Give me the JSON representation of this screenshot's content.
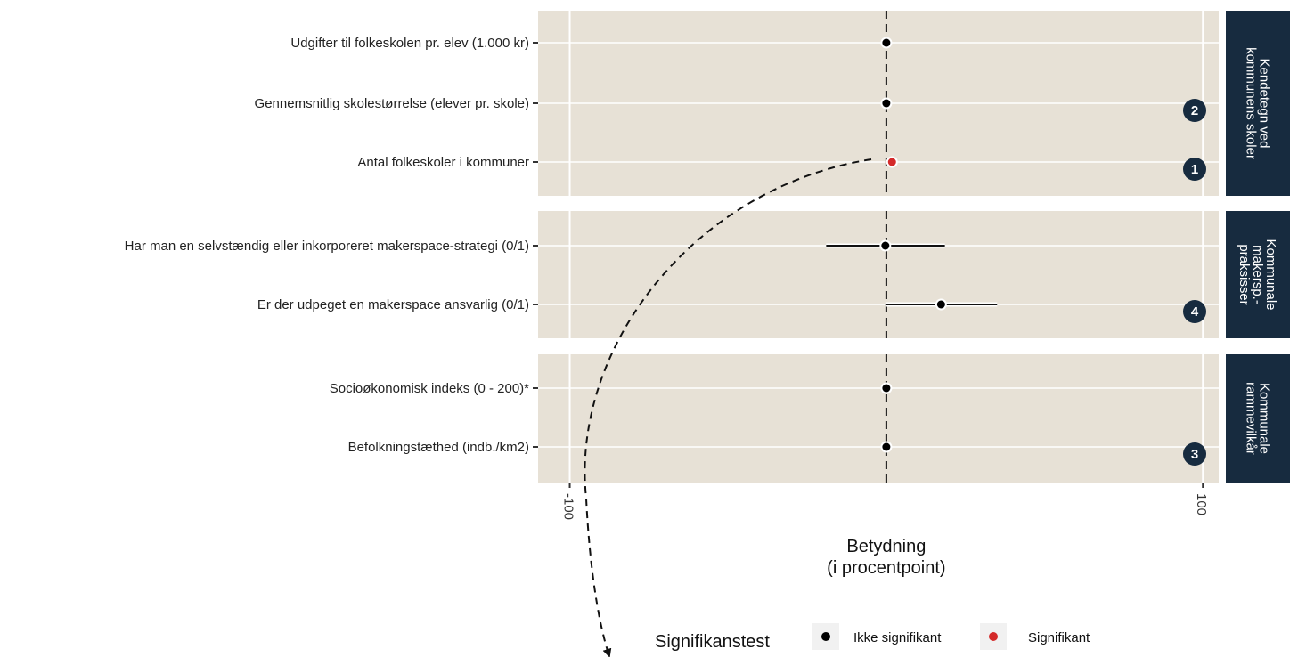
{
  "chart_data": {
    "type": "forest",
    "xlabel": "Betydning\n(i procentpoint)",
    "xlim": [
      -110,
      105
    ],
    "xticks": [
      -100,
      100
    ],
    "xtick_labels": [
      "-100",
      "100"
    ],
    "reference_line": 0,
    "grid": true,
    "panels": [
      {
        "strip": "Kendetegn ved\nkommunens skoler",
        "rows": [
          {
            "label": "Udgifter til folkeskolen pr. elev  (1.000 kr)",
            "estimate": 0,
            "lower": null,
            "upper": null,
            "significant": false
          },
          {
            "label": "Gennemsnitlig skolestørrelse (elever pr. skole)",
            "estimate": 0,
            "lower": null,
            "upper": null,
            "significant": false,
            "badge": "2"
          },
          {
            "label": "Antal folkeskoler i kommuner",
            "estimate": 1.8,
            "lower": null,
            "upper": null,
            "significant": true,
            "badge": "1"
          }
        ]
      },
      {
        "strip": "Kommunale\nmakersp.-\npraksisser",
        "rows": [
          {
            "label": "Har man en selvstændig eller inkorporeret makerspace-strategi (0/1)",
            "estimate": -0.3,
            "lower": -19,
            "upper": 18.5,
            "significant": false
          },
          {
            "label": "Er der udpeget en makerspace ansvarlig (0/1)",
            "estimate": 17.3,
            "lower": -0.3,
            "upper": 35,
            "significant": false,
            "badge": "4"
          }
        ]
      },
      {
        "strip": "Kommunale\nrammevilkår",
        "rows": [
          {
            "label": "Socioøkonomisk indeks (0 - 200)*",
            "estimate": 0,
            "lower": null,
            "upper": null,
            "significant": false
          },
          {
            "label": "Befolkningstæthed (indb./km2)",
            "estimate": 0,
            "lower": null,
            "upper": null,
            "significant": false,
            "badge": "3"
          }
        ]
      }
    ],
    "legend": {
      "title": "Signifikanstest",
      "position": "bottom",
      "items": [
        {
          "label": "Ikke signifikant",
          "color": "#000000"
        },
        {
          "label": "Signifikant",
          "color": "#d42a2a"
        }
      ]
    },
    "colors": {
      "panel_bg": "#e7e1d6",
      "strip_bg": "#172b3f",
      "badge_bg": "#172b3f",
      "not_significant": "#000000",
      "significant": "#d42a2a"
    }
  }
}
